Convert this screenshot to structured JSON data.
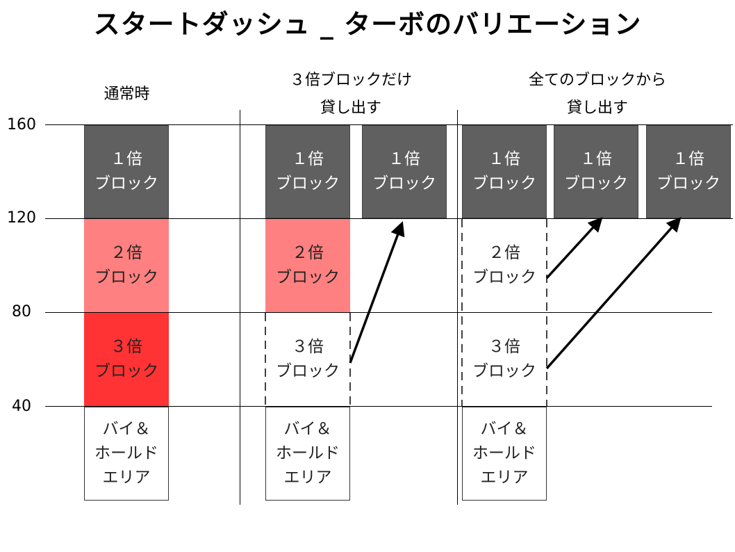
{
  "title": "スタートダッシュ _ ターボのバリエーション",
  "columns": [
    {
      "header": "通常時"
    },
    {
      "header": "３倍ブロックだけ\n貸し出す"
    },
    {
      "header": "全てのブロックから\n貸し出す"
    }
  ],
  "y_axis": {
    "ticks": [
      "160",
      "120",
      "80",
      "40"
    ]
  },
  "blocks": {
    "x1": "１倍\nブロック",
    "x2": "２倍\nブロック",
    "x3": "３倍\nブロック",
    "hold": "バイ＆\nホールド\nエリア"
  },
  "colors": {
    "x1": "#606060",
    "x2": "#ff8080",
    "x3": "#ff3333",
    "hold": "#ffffff"
  }
}
